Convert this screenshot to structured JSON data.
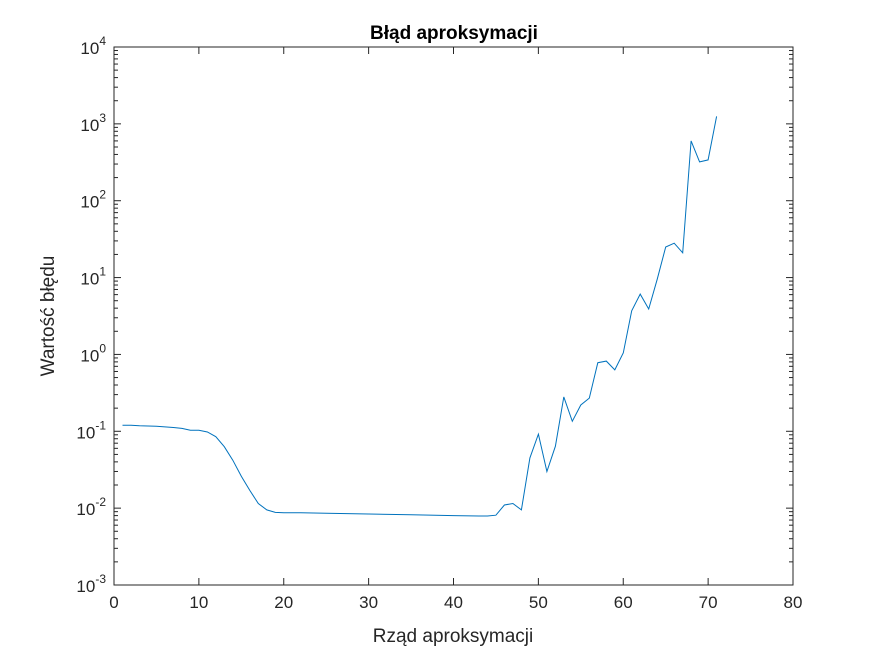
{
  "chart_data": {
    "type": "line",
    "title": "Błąd aproksymacji",
    "xlabel": "Rząd aproksymacji",
    "ylabel": "Wartość błędu",
    "xlim": [
      0,
      80
    ],
    "ylim": [
      0.001,
      10000
    ],
    "yscale": "log",
    "grid": false,
    "legend": "none",
    "x_ticks": [
      0,
      10,
      20,
      30,
      40,
      50,
      60,
      70,
      80
    ],
    "y_ticks": [
      {
        "value": 0.001,
        "base": "10",
        "exp": "-3"
      },
      {
        "value": 0.01,
        "base": "10",
        "exp": "-2"
      },
      {
        "value": 0.1,
        "base": "10",
        "exp": "-1"
      },
      {
        "value": 1,
        "base": "10",
        "exp": "0"
      },
      {
        "value": 10,
        "base": "10",
        "exp": "1"
      },
      {
        "value": 100,
        "base": "10",
        "exp": "2"
      },
      {
        "value": 1000,
        "base": "10",
        "exp": "3"
      },
      {
        "value": 10000,
        "base": "10",
        "exp": "4"
      }
    ],
    "colors": {
      "line": "#0072bd",
      "axes": "#262626"
    },
    "series": [
      {
        "x": [
          1,
          2,
          3,
          4,
          5,
          6,
          7,
          8,
          9,
          10,
          11,
          12,
          13,
          14,
          15,
          16,
          17,
          18,
          19,
          20,
          22,
          25,
          30,
          35,
          40,
          43,
          44,
          45,
          46,
          47,
          48,
          49,
          50,
          51,
          52,
          53,
          54,
          55,
          56,
          57,
          58,
          59,
          60,
          61,
          62,
          63,
          64,
          65,
          66,
          67,
          68,
          69,
          70,
          71
        ],
        "y": [
          0.12,
          0.12,
          0.118,
          0.117,
          0.116,
          0.114,
          0.112,
          0.109,
          0.103,
          0.103,
          0.098,
          0.085,
          0.063,
          0.042,
          0.026,
          0.017,
          0.0115,
          0.0095,
          0.0088,
          0.0087,
          0.0087,
          0.0086,
          0.0084,
          0.0082,
          0.008,
          0.0079,
          0.0079,
          0.0081,
          0.011,
          0.0115,
          0.0095,
          0.045,
          0.092,
          0.03,
          0.064,
          0.28,
          0.135,
          0.22,
          0.27,
          0.78,
          0.82,
          0.63,
          1.05,
          3.7,
          6.1,
          3.9,
          9.5,
          25,
          28,
          21,
          600,
          320,
          340,
          1250
        ]
      }
    ]
  }
}
